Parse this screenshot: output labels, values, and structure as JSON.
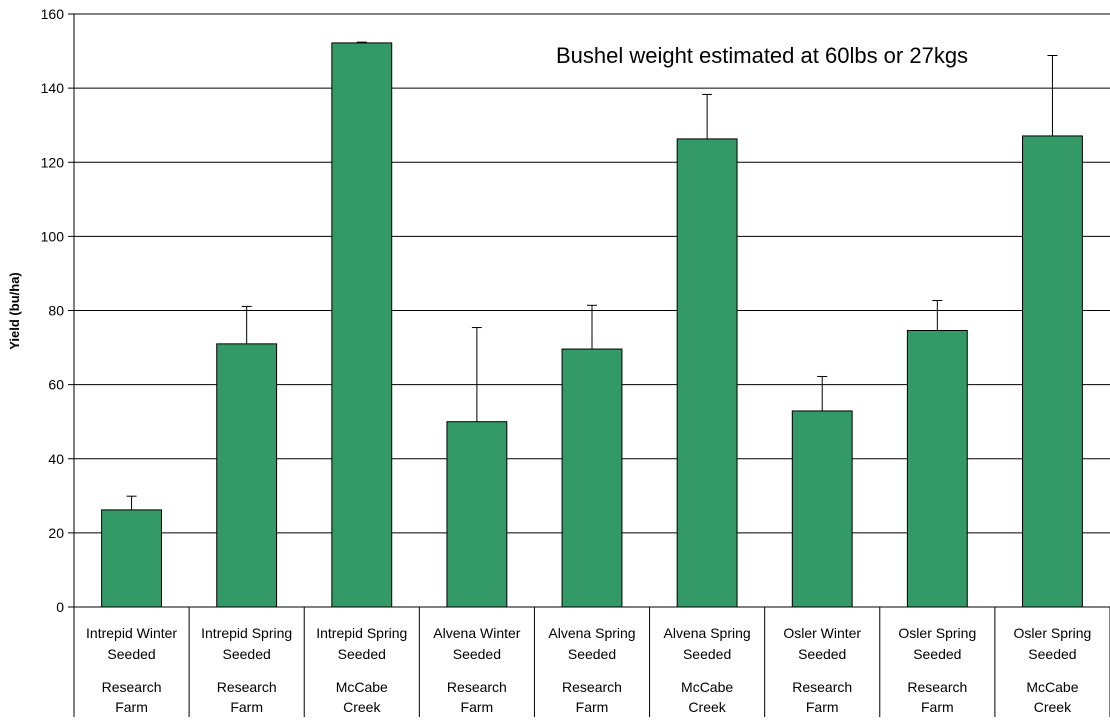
{
  "chart_data": {
    "type": "bar",
    "title": "",
    "annotation": "Bushel weight estimated at 60lbs or 27kgs",
    "xlabel": "",
    "ylabel": "Yield (bu/ha)",
    "ylim": [
      0,
      160
    ],
    "yticks": [
      0,
      20,
      40,
      60,
      80,
      100,
      120,
      140,
      160
    ],
    "grid": true,
    "legend": "none",
    "categories": [
      {
        "line1": "Intrepid Winter",
        "line2": "Seeded",
        "loc1": "Research",
        "loc2": "Farm"
      },
      {
        "line1": "Intrepid Spring",
        "line2": "Seeded",
        "loc1": "Research",
        "loc2": "Farm"
      },
      {
        "line1": "Intrepid Spring",
        "line2": "Seeded",
        "loc1": "McCabe",
        "loc2": "Creek"
      },
      {
        "line1": "Alvena Winter",
        "line2": "Seeded",
        "loc1": "Research",
        "loc2": "Farm"
      },
      {
        "line1": "Alvena Spring",
        "line2": "Seeded",
        "loc1": "Research",
        "loc2": "Farm"
      },
      {
        "line1": "Alvena Spring",
        "line2": "Seeded",
        "loc1": "McCabe",
        "loc2": "Creek"
      },
      {
        "line1": "Osler Winter",
        "line2": "Seeded",
        "loc1": "Research",
        "loc2": "Farm"
      },
      {
        "line1": "Osler Spring",
        "line2": "Seeded",
        "loc1": "Research",
        "loc2": "Farm"
      },
      {
        "line1": "Osler Spring",
        "line2": "Seeded",
        "loc1": "McCabe",
        "loc2": "Creek"
      }
    ],
    "values": [
      26.2,
      71.0,
      152.2,
      50.0,
      69.6,
      126.3,
      52.9,
      74.6,
      127.1
    ],
    "error_upper": [
      29.9,
      81.1,
      152.4,
      75.4,
      81.4,
      138.3,
      62.2,
      82.7,
      148.8
    ],
    "colors": {
      "bar": "#339966",
      "bar_edge": "#000000",
      "grid": "#000000",
      "axis": "#000000"
    }
  }
}
